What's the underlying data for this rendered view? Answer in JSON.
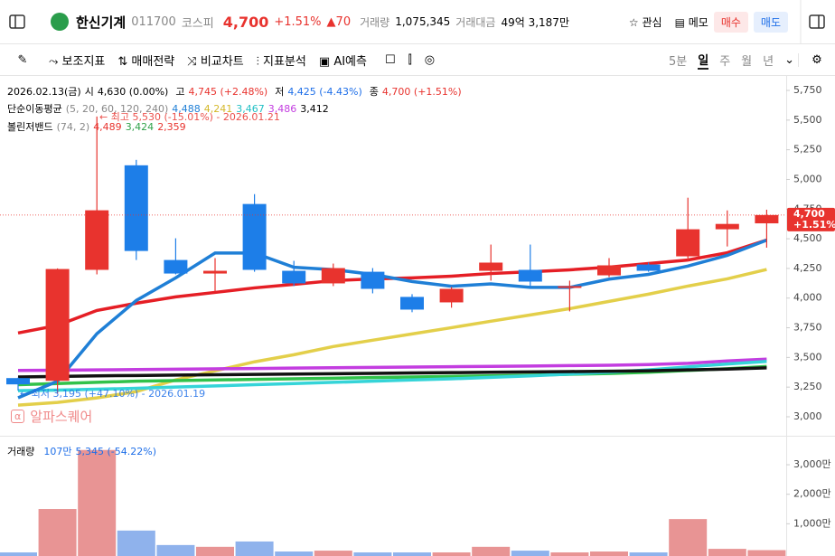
{
  "header": {
    "name": "한신기계",
    "code": "011700",
    "market": "코스피",
    "price": "4,700",
    "change_pct": "+1.51%",
    "change": "70",
    "volume_label": "거래량",
    "volume": "1,075,345",
    "amount_label": "거래대금",
    "amount": "49억 3,187만",
    "buttons": [
      "관심",
      "메모",
      "매수",
      "매도"
    ]
  },
  "toolbar": {
    "tools": [
      "보조지표",
      "매매전략",
      "비교차트",
      "지표분석",
      "AI예측"
    ],
    "periods": [
      "5분",
      "일",
      "주",
      "월",
      "년"
    ]
  },
  "info": {
    "date": "2026.02.13(금)",
    "open_label": "시",
    "open": "4,630 (0.00%)",
    "high_label": "고",
    "high": "4,745 (+2.48%)",
    "low_label": "저",
    "low": "4,425 (-4.43%)",
    "close_label": "종",
    "close": "4,700 (+1.51%)",
    "ma_label": "단순이동평균",
    "ma_params": "(5, 20, 60, 120, 240)",
    "ma_values": [
      "4,488",
      "4,241",
      "3,467",
      "3,486",
      "3,412"
    ],
    "bb_label": "볼린저밴드",
    "bb_params": "(74, 2)",
    "bb_values": [
      "4,489",
      "3,424",
      "2,359"
    ]
  },
  "annotations": {
    "max": "최고 5,530 (-15.01%) - 2026.01.21",
    "min": "최저 3,195 (+47.10%) - 2026.01.19",
    "watermark": "알파스퀘어"
  },
  "chart": {
    "ylim": [
      2840,
      5872
    ],
    "yticks": [
      {
        "value": 3000,
        "label": "3,000"
      },
      {
        "value": 3250,
        "label": "3,250"
      },
      {
        "value": 3500,
        "label": "3,500"
      },
      {
        "value": 3750,
        "label": "3,750"
      },
      {
        "value": 4000,
        "label": "4,000"
      },
      {
        "value": 4250,
        "label": "4,250"
      },
      {
        "value": 4500,
        "label": "4,500"
      },
      {
        "value": 4750,
        "label": "4,750"
      },
      {
        "value": 5000,
        "label": "5,000"
      },
      {
        "value": 5250,
        "label": "5,250"
      },
      {
        "value": 5500,
        "label": "5,500"
      },
      {
        "value": 5750,
        "label": "5,750"
      }
    ],
    "current": {
      "value": 4700,
      "label": "4,700",
      "pct": "+1.51%"
    },
    "up_color": "#e8332e",
    "down_color": "#1d7ee8",
    "candles": [
      {
        "open": 3326,
        "high": 3330,
        "low": 3220,
        "close": 3273
      },
      {
        "open": 3303,
        "high": 4250,
        "low": 3195,
        "close": 4245
      },
      {
        "open": 4238,
        "high": 5530,
        "low": 4200,
        "close": 4740
      },
      {
        "open": 5119,
        "high": 5165,
        "low": 4321,
        "close": 4397
      },
      {
        "open": 4321,
        "high": 4504,
        "low": 4200,
        "close": 4207
      },
      {
        "open": 4207,
        "high": 4337,
        "low": 4056,
        "close": 4230
      },
      {
        "open": 4793,
        "high": 4876,
        "low": 4222,
        "close": 4238
      },
      {
        "open": 4230,
        "high": 4314,
        "low": 4101,
        "close": 4124
      },
      {
        "open": 4124,
        "high": 4291,
        "low": 4101,
        "close": 4253
      },
      {
        "open": 4222,
        "high": 4253,
        "low": 4040,
        "close": 4078
      },
      {
        "open": 4010,
        "high": 4033,
        "low": 3881,
        "close": 3903
      },
      {
        "open": 3964,
        "high": 4093,
        "low": 3919,
        "close": 4078
      },
      {
        "open": 4230,
        "high": 4451,
        "low": 4147,
        "close": 4299
      },
      {
        "open": 4238,
        "high": 4451,
        "low": 4086,
        "close": 4139
      },
      {
        "open": 4086,
        "high": 4147,
        "low": 3888,
        "close": 4101
      },
      {
        "open": 4192,
        "high": 4337,
        "low": 4177,
        "close": 4276
      },
      {
        "open": 4283,
        "high": 4299,
        "low": 4222,
        "close": 4230
      },
      {
        "open": 4352,
        "high": 4846,
        "low": 4314,
        "close": 4580
      },
      {
        "open": 4580,
        "high": 4739,
        "low": 4435,
        "close": 4625
      },
      {
        "open": 4630,
        "high": 4745,
        "low": 4425,
        "close": 4700
      }
    ],
    "lines": [
      {
        "color": "#e51e25",
        "values": [
          3706,
          3770,
          3896,
          3957,
          4010,
          4048,
          4086,
          4116,
          4147,
          4162,
          4170,
          4185,
          4207,
          4222,
          4238,
          4261,
          4291,
          4321,
          4382,
          4489
        ]
      },
      {
        "color": "#e3cf4a",
        "values": [
          3098,
          3121,
          3159,
          3212,
          3311,
          3387,
          3463,
          3523,
          3592,
          3645,
          3698,
          3751,
          3805,
          3858,
          3911,
          3972,
          4033,
          4101,
          4162,
          4241
        ]
      },
      {
        "color": "#c33de0",
        "values": [
          3390,
          3392,
          3395,
          3398,
          3401,
          3404,
          3407,
          3410,
          3413,
          3416,
          3419,
          3422,
          3425,
          3428,
          3431,
          3434,
          3440,
          3450,
          3470,
          3486
        ]
      },
      {
        "color": "#31c24a",
        "values": [
          3270,
          3280,
          3290,
          3300,
          3305,
          3310,
          3315,
          3320,
          3325,
          3330,
          3335,
          3340,
          3345,
          3350,
          3358,
          3365,
          3375,
          3390,
          3405,
          3424
        ]
      },
      {
        "color": "#35d4d8",
        "values": [
          3220,
          3225,
          3232,
          3240,
          3250,
          3260,
          3270,
          3280,
          3290,
          3300,
          3310,
          3320,
          3332,
          3345,
          3360,
          3375,
          3395,
          3420,
          3445,
          3467
        ]
      },
      {
        "color": "#111111",
        "values": [
          3335,
          3340,
          3345,
          3348,
          3351,
          3354,
          3357,
          3360,
          3363,
          3366,
          3369,
          3372,
          3375,
          3378,
          3381,
          3384,
          3388,
          3395,
          3402,
          3412
        ]
      },
      {
        "color": "#1f7fd6",
        "values": [
          3160,
          3300,
          3700,
          3980,
          4170,
          4380,
          4380,
          4260,
          4240,
          4200,
          4140,
          4100,
          4120,
          4090,
          4090,
          4160,
          4200,
          4270,
          4360,
          4488
        ]
      }
    ]
  },
  "volume": {
    "label": "거래량",
    "current": "107만",
    "detail": "5,345 (-54.22%)",
    "ylim": [
      0,
      3890
    ],
    "yticks": [
      {
        "value": 1000,
        "label": "1,000만"
      },
      {
        "value": 2000,
        "label": "2,000만"
      },
      {
        "value": 3000,
        "label": "3,000만"
      }
    ],
    "up_color": "#e89494",
    "down_color": "#8fb2ec",
    "values": [
      30,
      1500,
      3500,
      770,
      280,
      220,
      400,
      60,
      90,
      30,
      30,
      30,
      220,
      90,
      30,
      60,
      30,
      1160,
      150,
      107
    ]
  }
}
